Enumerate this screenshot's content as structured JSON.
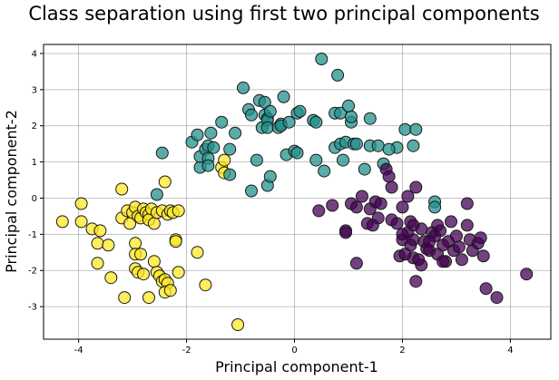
{
  "chart_data": {
    "type": "scatter",
    "title": "Class separation using first two principal components",
    "xlabel": "Principal component-1",
    "ylabel": "Principal component-2",
    "xlim": [
      -4.65,
      4.75
    ],
    "ylim": [
      -3.9,
      4.25
    ],
    "xticks": [
      -4,
      -2,
      0,
      2,
      4
    ],
    "yticks": [
      -3,
      -2,
      -1,
      0,
      1,
      2,
      3,
      4
    ],
    "grid": true,
    "colors": {
      "class0": "#fde725",
      "class1": "#21918c",
      "class2": "#440154"
    },
    "series": [
      {
        "color_key": "class0",
        "points": [
          [
            -4.3,
            -0.65
          ],
          [
            -3.95,
            -0.15
          ],
          [
            -3.95,
            -0.65
          ],
          [
            -3.75,
            -0.85
          ],
          [
            -3.6,
            -0.9
          ],
          [
            -3.65,
            -1.25
          ],
          [
            -3.65,
            -1.8
          ],
          [
            -3.45,
            -1.3
          ],
          [
            -3.4,
            -2.2
          ],
          [
            -3.2,
            0.25
          ],
          [
            -3.2,
            -0.55
          ],
          [
            -3.1,
            -0.35
          ],
          [
            -3.05,
            -0.7
          ],
          [
            -3.0,
            -0.4
          ],
          [
            -2.95,
            -0.25
          ],
          [
            -2.9,
            -0.5
          ],
          [
            -2.85,
            -0.55
          ],
          [
            -2.8,
            -0.3
          ],
          [
            -2.75,
            -0.4
          ],
          [
            -2.7,
            -0.45
          ],
          [
            -2.7,
            -0.6
          ],
          [
            -2.65,
            -0.3
          ],
          [
            -2.6,
            -0.7
          ],
          [
            -2.55,
            -0.4
          ],
          [
            -2.45,
            -0.35
          ],
          [
            -2.35,
            -0.45
          ],
          [
            -2.4,
            0.45
          ],
          [
            -2.3,
            -0.35
          ],
          [
            -2.25,
            -0.4
          ],
          [
            -2.2,
            -1.15
          ],
          [
            -2.15,
            -0.35
          ],
          [
            -2.95,
            -1.25
          ],
          [
            -2.95,
            -1.55
          ],
          [
            -2.85,
            -1.55
          ],
          [
            -2.95,
            -1.95
          ],
          [
            -2.9,
            -2.05
          ],
          [
            -2.8,
            -2.1
          ],
          [
            -2.6,
            -1.75
          ],
          [
            -2.55,
            -2.05
          ],
          [
            -2.5,
            -2.15
          ],
          [
            -2.45,
            -2.3
          ],
          [
            -2.4,
            -2.25
          ],
          [
            -2.35,
            -2.35
          ],
          [
            -2.4,
            -2.6
          ],
          [
            -2.3,
            -2.55
          ],
          [
            -2.15,
            -2.05
          ],
          [
            -2.2,
            -1.2
          ],
          [
            -1.8,
            -1.5
          ],
          [
            -1.35,
            0.85
          ],
          [
            -1.3,
            1.05
          ],
          [
            -1.3,
            0.7
          ],
          [
            -1.65,
            -2.4
          ],
          [
            -3.15,
            -2.75
          ],
          [
            -2.7,
            -2.75
          ],
          [
            -1.05,
            -3.5
          ]
        ]
      },
      {
        "color_key": "class1",
        "points": [
          [
            -2.45,
            1.25
          ],
          [
            -2.55,
            0.1
          ],
          [
            -1.9,
            1.55
          ],
          [
            -1.8,
            1.75
          ],
          [
            -1.75,
            0.85
          ],
          [
            -1.75,
            1.15
          ],
          [
            -1.65,
            1.35
          ],
          [
            -1.6,
            1.45
          ],
          [
            -1.6,
            1.1
          ],
          [
            -1.6,
            0.9
          ],
          [
            -1.55,
            1.8
          ],
          [
            -1.5,
            1.4
          ],
          [
            -1.35,
            2.1
          ],
          [
            -1.2,
            1.35
          ],
          [
            -1.2,
            0.65
          ],
          [
            -1.1,
            1.8
          ],
          [
            -0.95,
            3.05
          ],
          [
            -0.85,
            2.45
          ],
          [
            -0.8,
            2.3
          ],
          [
            -0.8,
            0.2
          ],
          [
            -0.7,
            1.05
          ],
          [
            -0.65,
            2.7
          ],
          [
            -0.6,
            1.95
          ],
          [
            -0.55,
            2.65
          ],
          [
            -0.55,
            2.3
          ],
          [
            -0.5,
            2.2
          ],
          [
            -0.5,
            2.15
          ],
          [
            -0.5,
            1.95
          ],
          [
            -0.5,
            0.35
          ],
          [
            -0.45,
            2.4
          ],
          [
            -0.45,
            0.6
          ],
          [
            -0.3,
            1.95
          ],
          [
            -0.25,
            2.05
          ],
          [
            -0.25,
            2.0
          ],
          [
            -0.2,
            2.8
          ],
          [
            -0.15,
            1.2
          ],
          [
            -0.1,
            2.1
          ],
          [
            0.0,
            1.3
          ],
          [
            0.05,
            2.35
          ],
          [
            0.1,
            2.4
          ],
          [
            0.35,
            2.15
          ],
          [
            0.4,
            2.1
          ],
          [
            0.4,
            1.05
          ],
          [
            0.5,
            3.85
          ],
          [
            0.75,
            2.35
          ],
          [
            0.75,
            1.4
          ],
          [
            0.8,
            3.4
          ],
          [
            0.85,
            2.35
          ],
          [
            0.85,
            1.5
          ],
          [
            0.95,
            1.55
          ],
          [
            1.05,
            2.1
          ],
          [
            1.05,
            2.25
          ],
          [
            1.1,
            1.5
          ],
          [
            1.15,
            1.5
          ],
          [
            1.3,
            0.8
          ],
          [
            1.4,
            2.2
          ],
          [
            1.4,
            1.45
          ],
          [
            1.55,
            1.45
          ],
          [
            1.65,
            0.95
          ],
          [
            1.9,
            1.4
          ],
          [
            2.05,
            1.9
          ],
          [
            2.2,
            1.45
          ],
          [
            2.25,
            1.9
          ],
          [
            1.0,
            2.55
          ],
          [
            2.6,
            -0.1
          ],
          [
            2.6,
            -0.25
          ],
          [
            0.05,
            1.25
          ],
          [
            0.9,
            1.05
          ],
          [
            0.55,
            0.75
          ],
          [
            1.75,
            1.35
          ]
        ]
      },
      {
        "color_key": "class2",
        "points": [
          [
            0.45,
            -0.35
          ],
          [
            0.7,
            -0.2
          ],
          [
            0.95,
            -0.9
          ],
          [
            1.05,
            -0.15
          ],
          [
            1.15,
            -0.25
          ],
          [
            1.15,
            -1.8
          ],
          [
            1.25,
            0.05
          ],
          [
            1.35,
            -0.7
          ],
          [
            1.4,
            -0.3
          ],
          [
            1.5,
            -0.1
          ],
          [
            1.55,
            -0.55
          ],
          [
            1.6,
            -0.15
          ],
          [
            1.7,
            0.8
          ],
          [
            1.75,
            0.6
          ],
          [
            1.8,
            0.3
          ],
          [
            1.8,
            -0.6
          ],
          [
            1.9,
            -0.7
          ],
          [
            1.95,
            -1.6
          ],
          [
            2.0,
            -0.25
          ],
          [
            2.0,
            -1.15
          ],
          [
            2.05,
            -1.55
          ],
          [
            2.1,
            0.05
          ],
          [
            2.1,
            -0.95
          ],
          [
            2.15,
            -0.65
          ],
          [
            2.2,
            -1.15
          ],
          [
            2.2,
            -1.65
          ],
          [
            2.25,
            -2.3
          ],
          [
            2.25,
            0.3
          ],
          [
            2.3,
            -1.7
          ],
          [
            2.35,
            -0.85
          ],
          [
            2.4,
            -1.2
          ],
          [
            2.45,
            -1.4
          ],
          [
            2.5,
            -1.45
          ],
          [
            2.55,
            -0.95
          ],
          [
            2.6,
            -1.05
          ],
          [
            2.65,
            -1.55
          ],
          [
            2.7,
            -0.9
          ],
          [
            2.75,
            -1.3
          ],
          [
            2.8,
            -1.75
          ],
          [
            2.85,
            -1.2
          ],
          [
            2.9,
            -0.65
          ],
          [
            2.95,
            -1.45
          ],
          [
            3.0,
            -1.05
          ],
          [
            3.05,
            -1.35
          ],
          [
            3.1,
            -1.7
          ],
          [
            3.2,
            -0.75
          ],
          [
            3.25,
            -1.15
          ],
          [
            3.3,
            -1.45
          ],
          [
            3.4,
            -1.25
          ],
          [
            3.45,
            -1.1
          ],
          [
            3.55,
            -2.5
          ],
          [
            3.5,
            -1.6
          ],
          [
            3.75,
            -2.75
          ],
          [
            4.3,
            -2.1
          ],
          [
            2.2,
            -0.75
          ],
          [
            2.35,
            -1.85
          ],
          [
            2.5,
            -1.2
          ],
          [
            2.65,
            -0.75
          ],
          [
            1.45,
            -0.75
          ],
          [
            0.95,
            -0.95
          ],
          [
            2.75,
            -1.75
          ],
          [
            2.0,
            -1.0
          ],
          [
            2.15,
            -1.3
          ],
          [
            3.2,
            -0.15
          ]
        ]
      }
    ]
  }
}
